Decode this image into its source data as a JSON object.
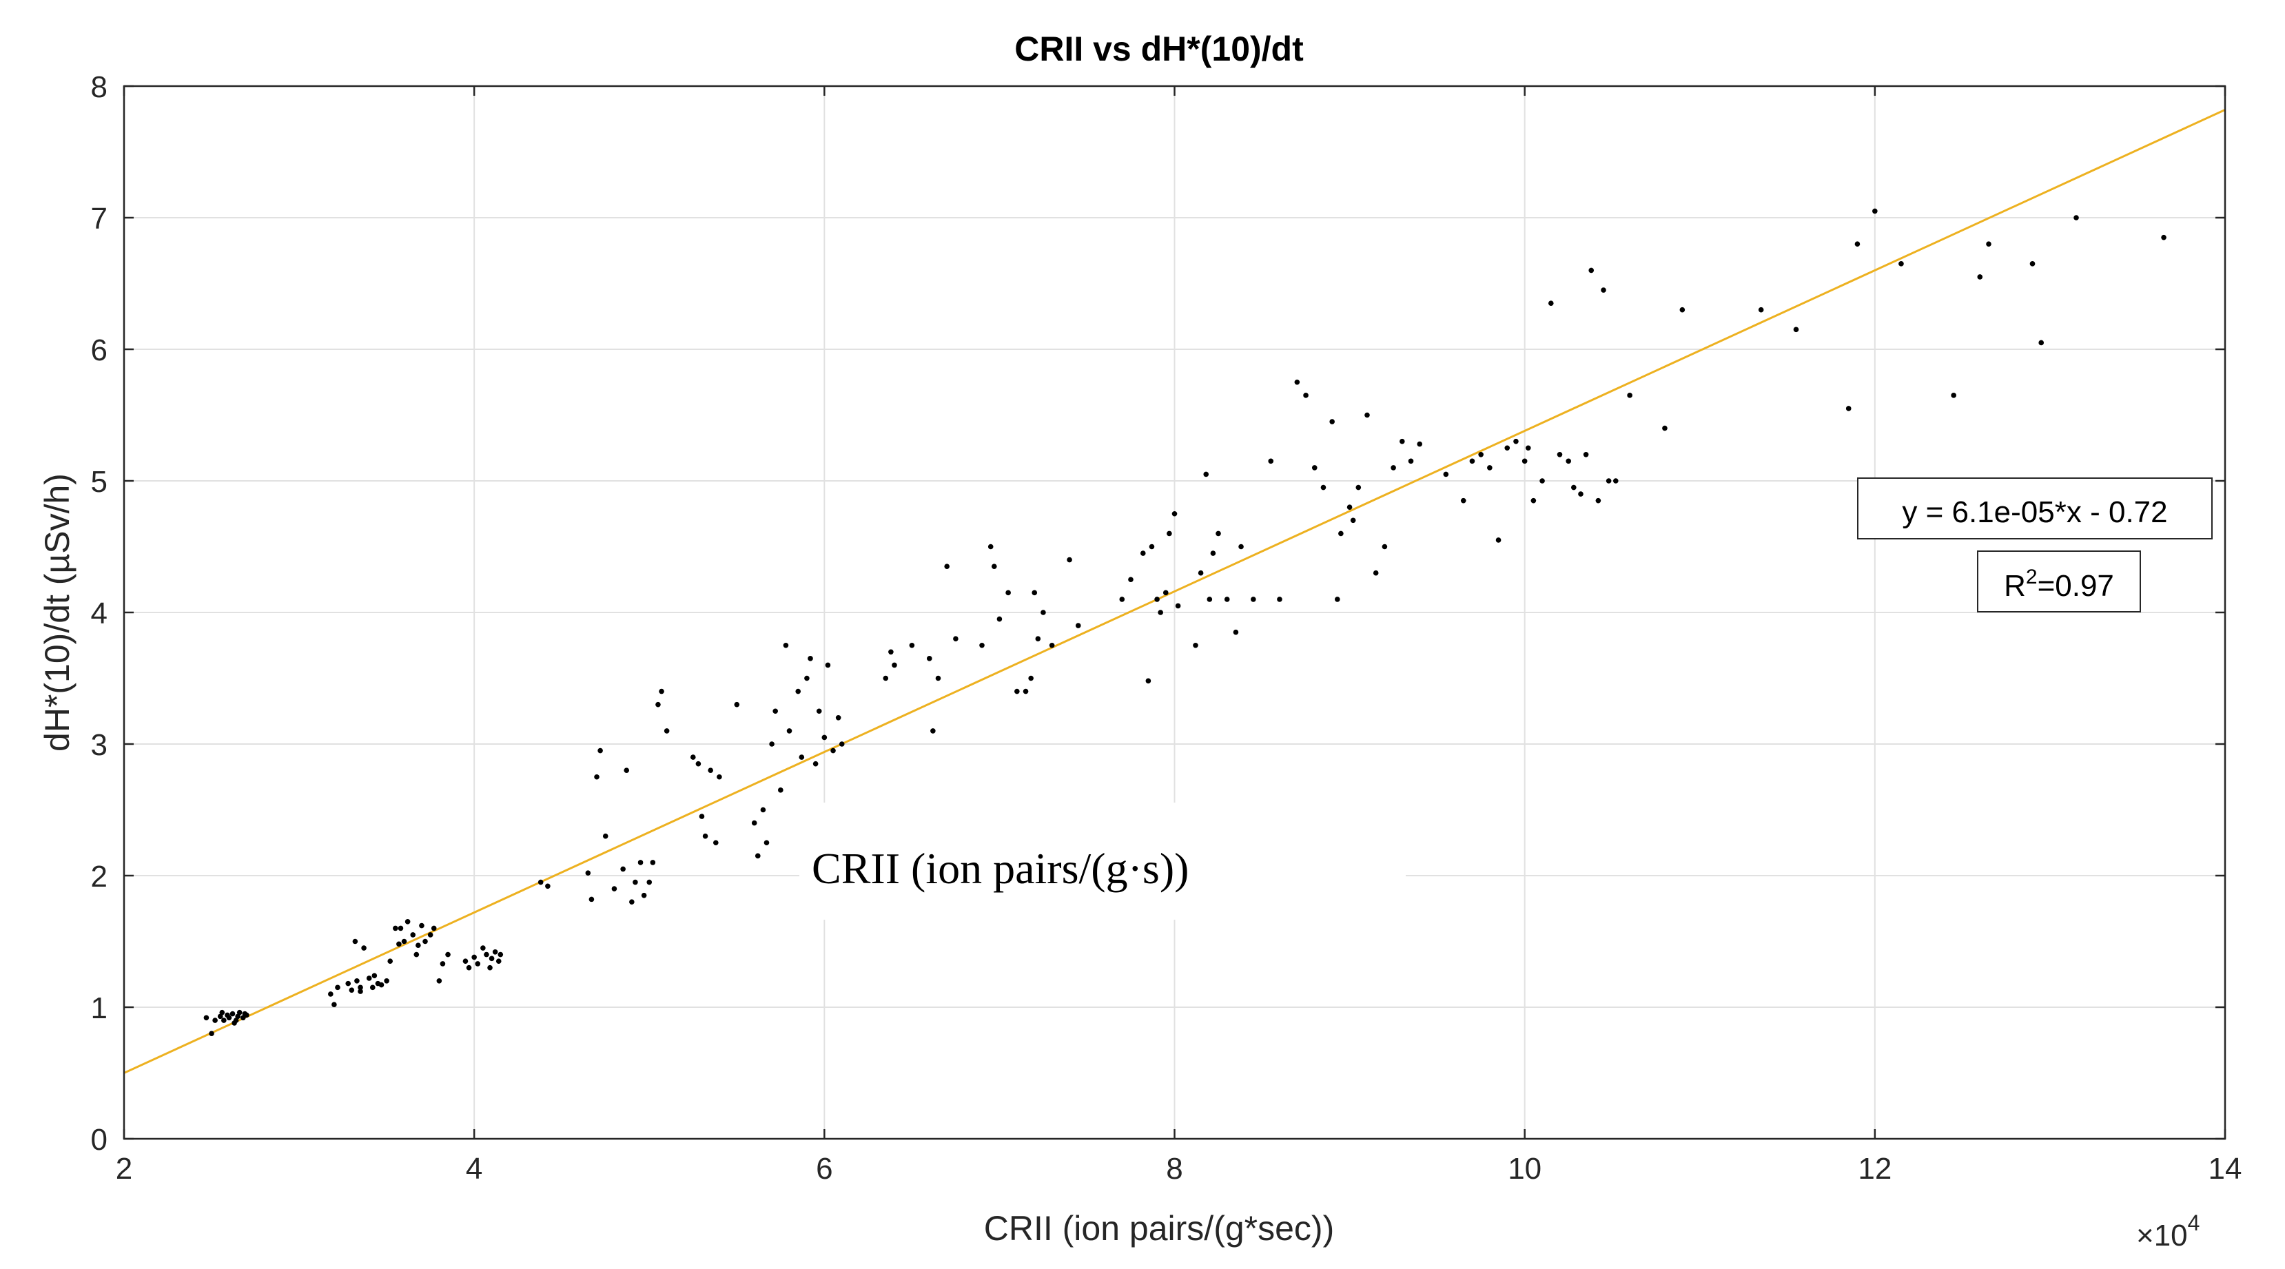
{
  "chart_data": {
    "type": "scatter",
    "title": "CRII vs dH*(10)/dt",
    "xlabel": "CRII (ion pairs/(g*sec))",
    "ylabel": "dH*(10)/dt (µSv/h)",
    "x_exponent_label": "×10",
    "x_exponent_power": "4",
    "x_scale": 10000,
    "xlim": [
      2,
      14
    ],
    "ylim": [
      0,
      8
    ],
    "xticks": [
      2,
      4,
      6,
      8,
      10,
      12,
      14
    ],
    "yticks": [
      0,
      1,
      2,
      3,
      4,
      5,
      6,
      7,
      8
    ],
    "grid": true,
    "overlay_label": "CRII (ion pairs/(g·s))",
    "fit_line": {
      "slope": 6.1e-05,
      "intercept": -0.72,
      "color": "#EDB120",
      "equation": "y = 6.1e-05*x - 0.72",
      "r2_label": "R",
      "r2_power": "2",
      "r2_value": "=0.97"
    },
    "point_color": "#000000",
    "series": [
      {
        "name": "measurements",
        "points": [
          [
            2.47,
            0.92
          ],
          [
            2.5,
            0.8
          ],
          [
            2.52,
            0.9
          ],
          [
            2.55,
            0.93
          ],
          [
            2.57,
            0.9
          ],
          [
            2.59,
            0.94
          ],
          [
            2.6,
            0.92
          ],
          [
            2.62,
            0.95
          ],
          [
            2.63,
            0.88
          ],
          [
            2.65,
            0.93
          ],
          [
            2.66,
            0.96
          ],
          [
            2.68,
            0.92
          ],
          [
            2.69,
            0.95
          ],
          [
            2.7,
            0.94
          ],
          [
            2.56,
            0.96
          ],
          [
            2.64,
            0.9
          ],
          [
            3.18,
            1.1
          ],
          [
            3.2,
            1.02
          ],
          [
            3.22,
            1.15
          ],
          [
            3.28,
            1.18
          ],
          [
            3.3,
            1.13
          ],
          [
            3.32,
            1.5
          ],
          [
            3.33,
            1.2
          ],
          [
            3.35,
            1.15
          ],
          [
            3.37,
            1.45
          ],
          [
            3.4,
            1.22
          ],
          [
            3.42,
            1.15
          ],
          [
            3.45,
            1.18
          ],
          [
            3.47,
            1.17
          ],
          [
            3.5,
            1.2
          ],
          [
            3.52,
            1.35
          ],
          [
            3.55,
            1.6
          ],
          [
            3.57,
            1.48
          ],
          [
            3.6,
            1.5
          ],
          [
            3.62,
            1.65
          ],
          [
            3.65,
            1.55
          ],
          [
            3.67,
            1.4
          ],
          [
            3.7,
            1.62
          ],
          [
            3.72,
            1.5
          ],
          [
            3.75,
            1.55
          ],
          [
            3.77,
            1.6
          ],
          [
            3.8,
            1.2
          ],
          [
            3.82,
            1.33
          ],
          [
            3.85,
            1.4
          ],
          [
            3.35,
            1.12
          ],
          [
            3.43,
            1.24
          ],
          [
            3.58,
            1.6
          ],
          [
            3.68,
            1.47
          ],
          [
            3.95,
            1.35
          ],
          [
            3.97,
            1.3
          ],
          [
            4.0,
            1.38
          ],
          [
            4.02,
            1.33
          ],
          [
            4.05,
            1.45
          ],
          [
            4.07,
            1.4
          ],
          [
            4.09,
            1.3
          ],
          [
            4.1,
            1.37
          ],
          [
            4.12,
            1.42
          ],
          [
            4.14,
            1.35
          ],
          [
            4.15,
            1.4
          ],
          [
            4.38,
            1.95
          ],
          [
            4.42,
            1.92
          ],
          [
            4.65,
            2.02
          ],
          [
            4.67,
            1.82
          ],
          [
            4.7,
            2.75
          ],
          [
            4.72,
            2.95
          ],
          [
            4.75,
            2.3
          ],
          [
            4.8,
            1.9
          ],
          [
            4.85,
            2.05
          ],
          [
            4.87,
            2.8
          ],
          [
            4.9,
            1.8
          ],
          [
            4.92,
            1.95
          ],
          [
            4.95,
            2.1
          ],
          [
            4.97,
            1.85
          ],
          [
            5.0,
            1.95
          ],
          [
            5.02,
            2.1
          ],
          [
            5.05,
            3.3
          ],
          [
            5.07,
            3.4
          ],
          [
            5.1,
            3.1
          ],
          [
            5.25,
            2.9
          ],
          [
            5.28,
            2.85
          ],
          [
            5.3,
            2.45
          ],
          [
            5.32,
            2.3
          ],
          [
            5.35,
            2.8
          ],
          [
            5.38,
            2.25
          ],
          [
            5.4,
            2.75
          ],
          [
            5.5,
            3.3
          ],
          [
            5.6,
            2.4
          ],
          [
            5.62,
            2.15
          ],
          [
            5.65,
            2.5
          ],
          [
            5.67,
            2.25
          ],
          [
            5.7,
            3.0
          ],
          [
            5.72,
            3.25
          ],
          [
            5.75,
            2.65
          ],
          [
            5.78,
            3.75
          ],
          [
            5.8,
            3.1
          ],
          [
            5.85,
            3.4
          ],
          [
            5.87,
            2.9
          ],
          [
            5.9,
            3.5
          ],
          [
            5.92,
            3.65
          ],
          [
            5.95,
            2.85
          ],
          [
            5.97,
            3.25
          ],
          [
            6.0,
            3.05
          ],
          [
            6.02,
            3.6
          ],
          [
            6.05,
            2.95
          ],
          [
            6.08,
            3.2
          ],
          [
            6.1,
            3.0
          ],
          [
            6.35,
            3.5
          ],
          [
            6.38,
            3.7
          ],
          [
            6.4,
            3.6
          ],
          [
            6.5,
            3.75
          ],
          [
            6.6,
            3.65
          ],
          [
            6.62,
            3.1
          ],
          [
            6.65,
            3.5
          ],
          [
            6.7,
            4.35
          ],
          [
            6.75,
            3.8
          ],
          [
            6.9,
            3.75
          ],
          [
            6.95,
            4.5
          ],
          [
            6.97,
            4.35
          ],
          [
            7.0,
            3.95
          ],
          [
            7.05,
            4.15
          ],
          [
            7.1,
            3.4
          ],
          [
            7.15,
            3.4
          ],
          [
            7.18,
            3.5
          ],
          [
            7.2,
            4.15
          ],
          [
            7.22,
            3.8
          ],
          [
            7.25,
            4.0
          ],
          [
            7.3,
            3.75
          ],
          [
            7.4,
            4.4
          ],
          [
            7.45,
            3.9
          ],
          [
            7.7,
            4.1
          ],
          [
            7.75,
            4.25
          ],
          [
            7.82,
            4.45
          ],
          [
            7.85,
            3.48
          ],
          [
            7.87,
            4.5
          ],
          [
            7.9,
            4.1
          ],
          [
            7.92,
            4.0
          ],
          [
            7.95,
            4.15
          ],
          [
            7.97,
            4.6
          ],
          [
            8.0,
            4.75
          ],
          [
            8.02,
            4.05
          ],
          [
            8.12,
            3.75
          ],
          [
            8.15,
            4.3
          ],
          [
            8.18,
            5.05
          ],
          [
            8.2,
            4.1
          ],
          [
            8.22,
            4.45
          ],
          [
            8.25,
            4.6
          ],
          [
            8.3,
            4.1
          ],
          [
            8.35,
            3.85
          ],
          [
            8.38,
            4.5
          ],
          [
            8.45,
            4.1
          ],
          [
            8.55,
            5.15
          ],
          [
            8.6,
            4.1
          ],
          [
            8.7,
            5.75
          ],
          [
            8.75,
            5.65
          ],
          [
            8.8,
            5.1
          ],
          [
            8.85,
            4.95
          ],
          [
            8.9,
            5.45
          ],
          [
            8.93,
            4.1
          ],
          [
            8.95,
            4.6
          ],
          [
            9.0,
            4.8
          ],
          [
            9.02,
            4.7
          ],
          [
            9.05,
            4.95
          ],
          [
            9.1,
            5.5
          ],
          [
            9.15,
            4.3
          ],
          [
            9.2,
            4.5
          ],
          [
            9.25,
            5.1
          ],
          [
            9.3,
            5.3
          ],
          [
            9.35,
            5.15
          ],
          [
            9.4,
            5.28
          ],
          [
            9.55,
            5.05
          ],
          [
            9.65,
            4.85
          ],
          [
            9.7,
            5.15
          ],
          [
            9.75,
            5.2
          ],
          [
            9.8,
            5.1
          ],
          [
            9.85,
            4.55
          ],
          [
            9.9,
            5.25
          ],
          [
            9.95,
            5.3
          ],
          [
            10.0,
            5.15
          ],
          [
            10.02,
            5.25
          ],
          [
            10.05,
            4.85
          ],
          [
            10.1,
            5.0
          ],
          [
            10.15,
            6.35
          ],
          [
            10.2,
            5.2
          ],
          [
            10.25,
            5.15
          ],
          [
            10.28,
            4.95
          ],
          [
            10.32,
            4.9
          ],
          [
            10.35,
            5.2
          ],
          [
            10.38,
            6.6
          ],
          [
            10.42,
            4.85
          ],
          [
            10.45,
            6.45
          ],
          [
            10.48,
            5.0
          ],
          [
            10.52,
            5.0
          ],
          [
            10.6,
            5.65
          ],
          [
            10.8,
            5.4
          ],
          [
            10.9,
            6.3
          ],
          [
            11.35,
            6.3
          ],
          [
            11.55,
            6.15
          ],
          [
            11.85,
            5.55
          ],
          [
            11.9,
            6.8
          ],
          [
            12.0,
            7.05
          ],
          [
            12.15,
            6.65
          ],
          [
            12.45,
            5.65
          ],
          [
            12.6,
            6.55
          ],
          [
            12.65,
            6.8
          ],
          [
            12.9,
            6.65
          ],
          [
            12.95,
            6.05
          ],
          [
            13.15,
            7.0
          ],
          [
            13.65,
            6.85
          ]
        ]
      }
    ]
  }
}
